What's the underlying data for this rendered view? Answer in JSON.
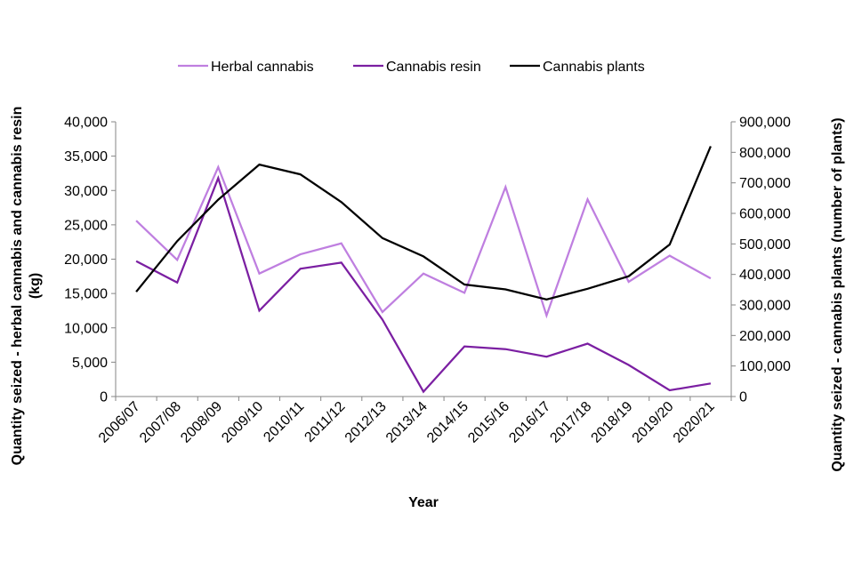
{
  "chart_data": {
    "type": "line",
    "title": "",
    "xlabel": "Year",
    "ylabel_left": "Quantity seized - herbal cannabis and cannabis resin (kg)",
    "ylabel_right": "Quantity seized - cannabis plants (number of plants)",
    "ylim_left": [
      0,
      40000
    ],
    "ylim_right": [
      0,
      900000
    ],
    "yticks_left": [
      "0",
      "5,000",
      "10,000",
      "15,000",
      "20,000",
      "25,000",
      "30,000",
      "35,000",
      "40,000"
    ],
    "yticks_right": [
      "0",
      "100,000",
      "200,000",
      "300,000",
      "400,000",
      "500,000",
      "600,000",
      "700,000",
      "800,000",
      "900,000"
    ],
    "grid": false,
    "legend_position": "top",
    "categories": [
      "2006/07",
      "2007/08",
      "2008/09",
      "2009/10",
      "2010/11",
      "2011/12",
      "2012/13",
      "2013/14",
      "2014/15",
      "2015/16",
      "2016/17",
      "2017/18",
      "2018/19",
      "2019/20",
      "2020/21"
    ],
    "series": [
      {
        "name": "Herbal cannabis",
        "axis": "left",
        "color": "#bf7fe0",
        "values": [
          25600,
          19900,
          33400,
          17900,
          20700,
          22300,
          12300,
          17900,
          15100,
          30500,
          11800,
          28700,
          16700,
          20500,
          17200
        ]
      },
      {
        "name": "Cannabis resin",
        "axis": "left",
        "color": "#7b1fa2",
        "values": [
          19700,
          16600,
          31800,
          12500,
          18600,
          19500,
          11200,
          700,
          7300,
          6900,
          5800,
          7700,
          4600,
          900,
          1900
        ]
      },
      {
        "name": "Cannabis plants",
        "axis": "right",
        "color": "#000000",
        "values": [
          343000,
          509000,
          645000,
          760000,
          728000,
          637000,
          519000,
          459000,
          367000,
          351000,
          318000,
          353000,
          394000,
          498000,
          820000
        ]
      }
    ]
  }
}
